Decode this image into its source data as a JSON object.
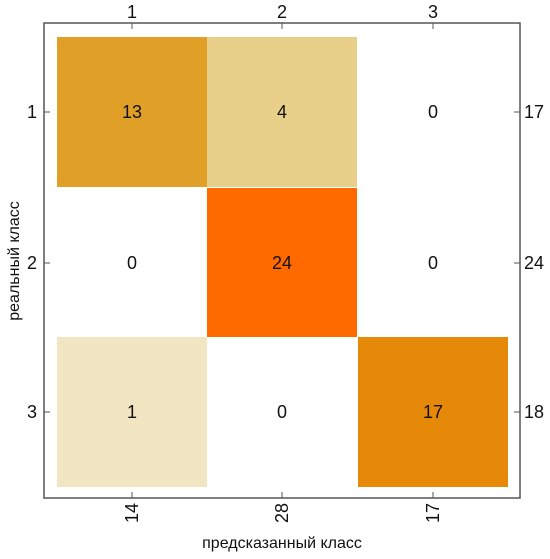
{
  "chart_data": {
    "type": "heatmap",
    "title": "",
    "xlabel": "предсказанный класс",
    "ylabel": "реальный класс",
    "x_categories": [
      "1",
      "2",
      "3"
    ],
    "y_categories": [
      "1",
      "2",
      "3"
    ],
    "matrix": [
      [
        13,
        4,
        0
      ],
      [
        0,
        24,
        0
      ],
      [
        1,
        0,
        17
      ]
    ],
    "row_totals": [
      "17",
      "24",
      "18"
    ],
    "column_totals": [
      "14",
      "28",
      "17"
    ],
    "zero_color": "#ffffff",
    "colors": {
      "13": "#e0a028",
      "4": "#e8d08a",
      "24": "#ff6a00",
      "1": "#f2e6c2",
      "17": "#e68808"
    },
    "frame_color": "#555555"
  }
}
